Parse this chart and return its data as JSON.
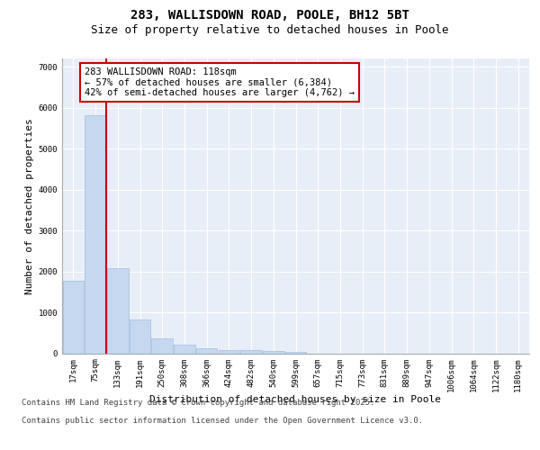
{
  "title_line1": "283, WALLISDOWN ROAD, POOLE, BH12 5BT",
  "title_line2": "Size of property relative to detached houses in Poole",
  "xlabel": "Distribution of detached houses by size in Poole",
  "ylabel": "Number of detached properties",
  "categories": [
    "17sqm",
    "75sqm",
    "133sqm",
    "191sqm",
    "250sqm",
    "308sqm",
    "366sqm",
    "424sqm",
    "482sqm",
    "540sqm",
    "599sqm",
    "657sqm",
    "715sqm",
    "773sqm",
    "831sqm",
    "889sqm",
    "947sqm",
    "1006sqm",
    "1064sqm",
    "1122sqm",
    "1180sqm"
  ],
  "values": [
    1780,
    5820,
    2080,
    820,
    370,
    210,
    110,
    85,
    70,
    55,
    40,
    0,
    0,
    0,
    0,
    0,
    0,
    0,
    0,
    0,
    0
  ],
  "bar_color": "#c5d8f0",
  "bar_edge_color": "#a0bedd",
  "vline_x_index": 1.5,
  "vline_color": "#cc0000",
  "annotation_text": "283 WALLISDOWN ROAD: 118sqm\n← 57% of detached houses are smaller (6,384)\n42% of semi-detached houses are larger (4,762) →",
  "annotation_box_color": "#cc0000",
  "footer_line1": "Contains HM Land Registry data © Crown copyright and database right 2025.",
  "footer_line2": "Contains public sector information licensed under the Open Government Licence v3.0.",
  "ylim": [
    0,
    7200
  ],
  "yticks": [
    0,
    1000,
    2000,
    3000,
    4000,
    5000,
    6000,
    7000
  ],
  "bg_color": "#e8eef8",
  "fig_bg_color": "#ffffff",
  "title_fontsize": 10,
  "subtitle_fontsize": 9,
  "axis_label_fontsize": 8,
  "tick_fontsize": 6.5,
  "annotation_fontsize": 7.5,
  "footer_fontsize": 6.5
}
